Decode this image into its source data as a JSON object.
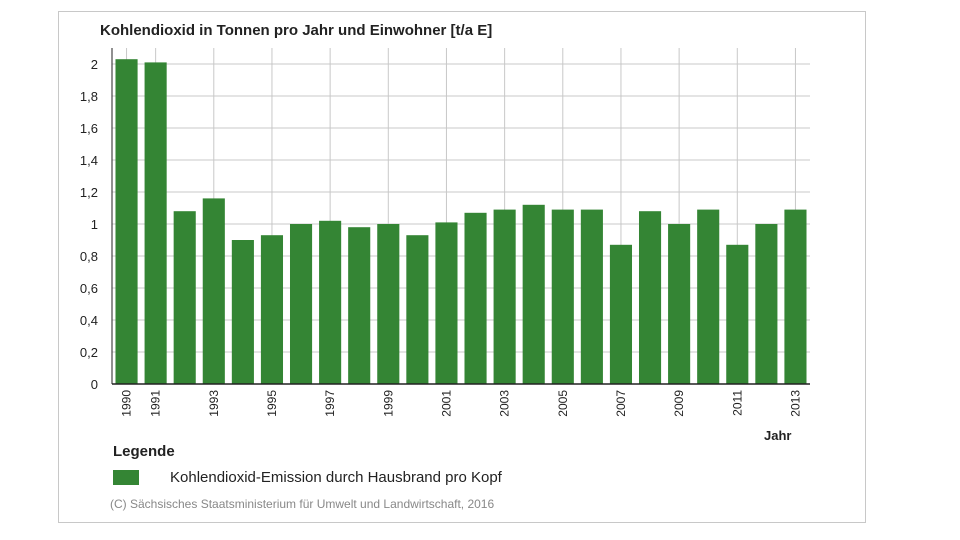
{
  "colors": {
    "bar": "#348534",
    "grid": "#c8c8c8",
    "axis": "#222222"
  },
  "legend": {
    "title": "Legende",
    "label": "Kohlendioxid-Emission durch Hausbrand pro Kopf"
  },
  "copyright": "(C) Sächsisches Staatsministerium für Umwelt und Landwirtschaft, 2016",
  "chart_data": {
    "type": "bar",
    "title": "Kohlendioxid in Tonnen pro Jahr und Einwohner [t/a E]",
    "xlabel": "Jahr",
    "ylabel": "",
    "ylim": [
      0,
      2.1
    ],
    "yticks": [
      0,
      0.2,
      0.4,
      0.6,
      0.8,
      1,
      1.2,
      1.4,
      1.6,
      1.8,
      2
    ],
    "ytick_labels": [
      "0",
      "0,2",
      "0,4",
      "0,6",
      "0,8",
      "1",
      "1,2",
      "1,4",
      "1,6",
      "1,8",
      "2"
    ],
    "grid": true,
    "legend_position": "bottom-left",
    "categories": [
      "1990",
      "1991",
      "1992",
      "1993",
      "1994",
      "1995",
      "1996",
      "1997",
      "1998",
      "1999",
      "2000",
      "2001",
      "2002",
      "2003",
      "2004",
      "2005",
      "2006",
      "2007",
      "2008",
      "2009",
      "2010",
      "2011",
      "2012",
      "2013"
    ],
    "tick_labels": [
      "1990",
      "1991",
      "",
      "1993",
      "",
      "1995",
      "",
      "1997",
      "",
      "1999",
      "",
      "2001",
      "",
      "2003",
      "",
      "2005",
      "",
      "2007",
      "",
      "2009",
      "",
      "2011",
      "",
      "2013"
    ],
    "series": [
      {
        "name": "Kohlendioxid-Emission durch Hausbrand pro Kopf",
        "values": [
          2.03,
          2.01,
          1.08,
          1.16,
          0.9,
          0.93,
          1.0,
          1.02,
          0.98,
          1.0,
          0.93,
          1.01,
          1.07,
          1.09,
          1.12,
          1.09,
          1.09,
          0.87,
          1.08,
          1.0,
          1.09,
          0.87,
          1.0,
          1.09
        ]
      }
    ]
  }
}
